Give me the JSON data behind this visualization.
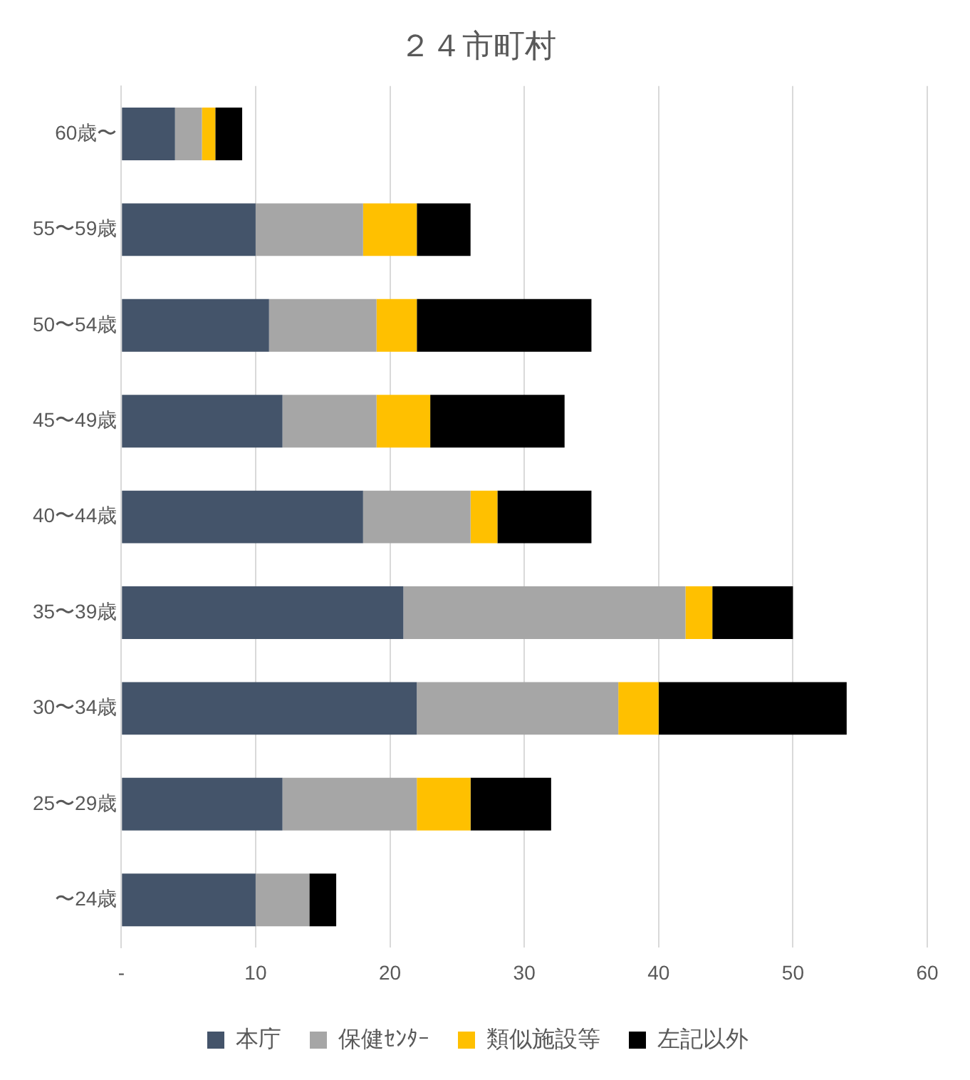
{
  "chart_data": {
    "type": "bar",
    "orientation": "horizontal",
    "stacked": true,
    "title": "２４市町村",
    "categories": [
      "60歳〜",
      "55〜59歳",
      "50〜54歳",
      "45〜49歳",
      "40〜44歳",
      "35〜39歳",
      "30〜34歳",
      "25〜29歳",
      "〜24歳"
    ],
    "series": [
      {
        "name": "本庁",
        "color": "#44546a",
        "values": [
          4,
          10,
          11,
          12,
          18,
          21,
          22,
          12,
          10
        ]
      },
      {
        "name": "保健ｾﾝﾀｰ",
        "color": "#a6a6a6",
        "values": [
          2,
          8,
          8,
          7,
          8,
          21,
          15,
          10,
          4
        ]
      },
      {
        "name": "類似施設等",
        "color": "#ffc000",
        "values": [
          1,
          4,
          3,
          4,
          2,
          2,
          3,
          4,
          0
        ]
      },
      {
        "name": "左記以外",
        "color": "#000000",
        "values": [
          2,
          4,
          13,
          10,
          7,
          6,
          14,
          6,
          2
        ]
      }
    ],
    "xlim": [
      0,
      60
    ],
    "xticks": [
      {
        "value": 0,
        "label": "-"
      },
      10,
      20,
      30,
      40,
      50,
      60
    ],
    "grid": "x",
    "legend": "bottom"
  }
}
